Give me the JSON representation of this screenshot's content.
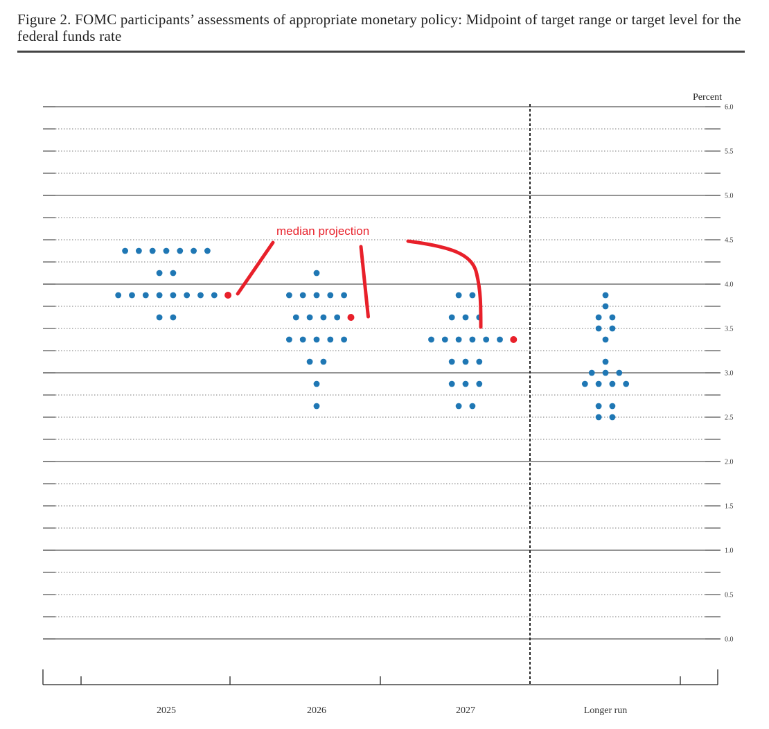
{
  "figure": {
    "title": "Figure 2.  FOMC participants’ assessments of appropriate monetary policy: Midpoint of target range or target level for the federal funds rate"
  },
  "colors": {
    "dot": "#1f77b4",
    "median": "#e8202a",
    "annotation": "#e8202a",
    "axis": "#333333"
  },
  "chart_data": {
    "type": "scatter",
    "ylabel": "Percent",
    "ylim": [
      0,
      6
    ],
    "yticks": [
      "0.0",
      "0.5",
      "1.0",
      "1.5",
      "2.0",
      "2.5",
      "3.0",
      "3.5",
      "4.0",
      "4.5",
      "5.0",
      "5.5",
      "6.0"
    ],
    "grid": true,
    "categories": [
      "2025",
      "2026",
      "2027",
      "Longer run"
    ],
    "dots": [
      {
        "category": "2025",
        "rows": [
          {
            "y": 4.375,
            "count": 7
          },
          {
            "y": 4.125,
            "count": 2
          },
          {
            "y": 3.875,
            "count": 8
          },
          {
            "y": 3.625,
            "count": 2
          }
        ]
      },
      {
        "category": "2026",
        "rows": [
          {
            "y": 4.125,
            "count": 1
          },
          {
            "y": 3.875,
            "count": 5
          },
          {
            "y": 3.625,
            "count": 4
          },
          {
            "y": 3.375,
            "count": 5
          },
          {
            "y": 3.125,
            "count": 2
          },
          {
            "y": 2.875,
            "count": 1
          },
          {
            "y": 2.625,
            "count": 1
          }
        ]
      },
      {
        "category": "2027",
        "rows": [
          {
            "y": 3.875,
            "count": 2
          },
          {
            "y": 3.625,
            "count": 3
          },
          {
            "y": 3.375,
            "count": 6
          },
          {
            "y": 3.125,
            "count": 3
          },
          {
            "y": 2.875,
            "count": 3
          },
          {
            "y": 2.625,
            "count": 2
          }
        ]
      },
      {
        "category": "Longer run",
        "rows": [
          {
            "y": 3.875,
            "count": 1
          },
          {
            "y": 3.75,
            "count": 1
          },
          {
            "y": 3.625,
            "count": 2
          },
          {
            "y": 3.5,
            "count": 2
          },
          {
            "y": 3.375,
            "count": 1
          },
          {
            "y": 3.125,
            "count": 1
          },
          {
            "y": 3.0,
            "count": 3
          },
          {
            "y": 2.875,
            "count": 4
          },
          {
            "y": 2.625,
            "count": 2
          },
          {
            "y": 2.5,
            "count": 2
          }
        ]
      }
    ],
    "medians": [
      {
        "category": "2025",
        "y": 3.875
      },
      {
        "category": "2026",
        "y": 3.625
      },
      {
        "category": "2027",
        "y": 3.375
      }
    ],
    "annotation": "median projection"
  }
}
